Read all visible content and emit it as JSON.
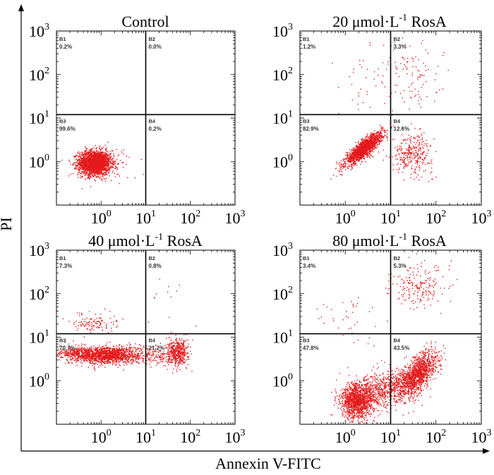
{
  "figure": {
    "ylabel": "PI",
    "xlabel": "Annexin V-FITC",
    "dot_color": "#e31a1c",
    "line_color": "#000000"
  },
  "chart_data": [
    {
      "type": "scatter",
      "title": "Control",
      "xlim": [
        0.1,
        1000
      ],
      "ylim": [
        0.1,
        1000
      ],
      "xscale": "log",
      "yscale": "log",
      "x_ticks": [
        "10",
        "10",
        "10",
        "10"
      ],
      "x_exps": [
        "0",
        "1",
        "2",
        "3"
      ],
      "y_ticks": [
        "10",
        "10",
        "10",
        "10"
      ],
      "y_exps": [
        "0",
        "1",
        "2",
        "3"
      ],
      "show_x_ticks": true,
      "show_y_ticks": true,
      "gate": {
        "x": 10,
        "y": 12
      },
      "quadrants": [
        {
          "id": "B1",
          "label": "B1",
          "value": "0.2%"
        },
        {
          "id": "B2",
          "label": "B2",
          "value": "0.0%"
        },
        {
          "id": "B3",
          "label": "B3",
          "value": "99.6%"
        },
        {
          "id": "B4",
          "label": "B4",
          "value": "0.2%"
        }
      ],
      "clusters": [
        {
          "cx": 0.7,
          "cy": 0.95,
          "sx": 0.18,
          "sy": 0.14,
          "n": 2400
        },
        {
          "cx": 2.0,
          "cy": 0.9,
          "sx": 0.25,
          "sy": 0.18,
          "n": 60
        }
      ]
    },
    {
      "type": "scatter",
      "title_main": "20 μmol·L",
      "title_sup": "-1",
      "title_tail": " RosA",
      "xlim": [
        0.1,
        1000
      ],
      "ylim": [
        0.1,
        1000
      ],
      "xscale": "log",
      "yscale": "log",
      "x_ticks": [
        "10",
        "10",
        "10",
        "10"
      ],
      "x_exps": [
        "0",
        "1",
        "2",
        "3"
      ],
      "y_ticks": [
        "10",
        "10",
        "10",
        "10"
      ],
      "y_exps": [
        "0",
        "1",
        "2",
        "3"
      ],
      "show_x_ticks": true,
      "show_y_ticks": true,
      "gate": {
        "x": 10,
        "y": 12
      },
      "quadrants": [
        {
          "id": "B1",
          "label": "B1",
          "value": "1.2%"
        },
        {
          "id": "B2",
          "label": "B2",
          "value": "3.3%"
        },
        {
          "id": "B3",
          "label": "B3",
          "value": "82.9%"
        },
        {
          "id": "B4",
          "label": "B4",
          "value": "12.6%"
        }
      ],
      "clusters": [
        {
          "cx": 2.5,
          "cy": 2.0,
          "sx": 0.2,
          "sy": 0.18,
          "n": 1700,
          "rho": 0.85
        },
        {
          "cx": 30,
          "cy": 1.6,
          "sx": 0.22,
          "sy": 0.22,
          "n": 320
        },
        {
          "cx": 25,
          "cy": 100,
          "sx": 0.35,
          "sy": 0.45,
          "n": 110
        },
        {
          "cx": 2.0,
          "cy": 50,
          "sx": 0.3,
          "sy": 0.5,
          "n": 30
        }
      ]
    },
    {
      "type": "scatter",
      "title_main": "40 μmol·L",
      "title_sup": "-1",
      "title_tail": "  RosA",
      "xlim": [
        0.1,
        1000
      ],
      "ylim": [
        0.1,
        1000
      ],
      "xscale": "log",
      "yscale": "log",
      "x_ticks": [
        "10",
        "10",
        "10",
        "10"
      ],
      "x_exps": [
        "0",
        "1",
        "2",
        "3"
      ],
      "y_ticks": [
        "10",
        "10",
        "10",
        "10"
      ],
      "y_exps": [
        "0",
        "1",
        "2",
        "3"
      ],
      "show_x_ticks": true,
      "show_y_ticks": true,
      "gate": {
        "x": 10,
        "y": 12
      },
      "quadrants": [
        {
          "id": "B1",
          "label": "B1",
          "value": "7.3%"
        },
        {
          "id": "B2",
          "label": "B2",
          "value": "0.8%"
        },
        {
          "id": "B3",
          "label": "B3",
          "value": "70.7%"
        },
        {
          "id": "B4",
          "label": "B4",
          "value": "21.2%"
        }
      ],
      "clusters": [
        {
          "cx": 1.3,
          "cy": 4.0,
          "sx": 0.38,
          "sy": 0.1,
          "n": 1500
        },
        {
          "cx": 0.3,
          "cy": 4.2,
          "sx": 0.25,
          "sy": 0.08,
          "n": 250
        },
        {
          "cx": 50,
          "cy": 4.5,
          "sx": 0.12,
          "sy": 0.15,
          "n": 480
        },
        {
          "cx": 15,
          "cy": 4.0,
          "sx": 0.2,
          "sy": 0.12,
          "n": 150
        },
        {
          "cx": 0.7,
          "cy": 22,
          "sx": 0.25,
          "sy": 0.1,
          "n": 120
        },
        {
          "cx": 30,
          "cy": 60,
          "sx": 0.3,
          "sy": 0.4,
          "n": 12
        }
      ]
    },
    {
      "type": "scatter",
      "title_main": "80 μmol·L",
      "title_sup": "-1",
      "title_tail": "  RosA",
      "xlim": [
        0.1,
        1000
      ],
      "ylim": [
        0.1,
        1000
      ],
      "xscale": "log",
      "yscale": "log",
      "x_ticks": [
        "10",
        "10",
        "10",
        "10"
      ],
      "x_exps": [
        "0",
        "1",
        "2",
        "3"
      ],
      "y_ticks": [
        "10",
        "10",
        "10",
        "10"
      ],
      "y_exps": [
        "0",
        "1",
        "2",
        "3"
      ],
      "show_x_ticks": true,
      "show_y_ticks": true,
      "gate": {
        "x": 10,
        "y": 12
      },
      "quadrants": [
        {
          "id": "B1",
          "label": "B1",
          "value": "3.4%"
        },
        {
          "id": "B2",
          "label": "B2",
          "value": "5.3%"
        },
        {
          "id": "B3",
          "label": "B3",
          "value": "47.8%"
        },
        {
          "id": "B4",
          "label": "B4",
          "value": "43.5%"
        }
      ],
      "clusters": [
        {
          "cx": 1.8,
          "cy": 0.35,
          "sx": 0.18,
          "sy": 0.2,
          "n": 1300
        },
        {
          "cx": 5.0,
          "cy": 0.6,
          "sx": 0.2,
          "sy": 0.2,
          "n": 400
        },
        {
          "cx": 40,
          "cy": 1.5,
          "sx": 0.2,
          "sy": 0.25,
          "n": 1300,
          "rho": 0.6
        },
        {
          "cx": 15,
          "cy": 0.8,
          "sx": 0.2,
          "sy": 0.2,
          "n": 280
        },
        {
          "cx": 40,
          "cy": 150,
          "sx": 0.3,
          "sy": 0.25,
          "n": 200
        },
        {
          "cx": 0.8,
          "cy": 30,
          "sx": 0.4,
          "sy": 0.3,
          "n": 40
        }
      ]
    }
  ]
}
